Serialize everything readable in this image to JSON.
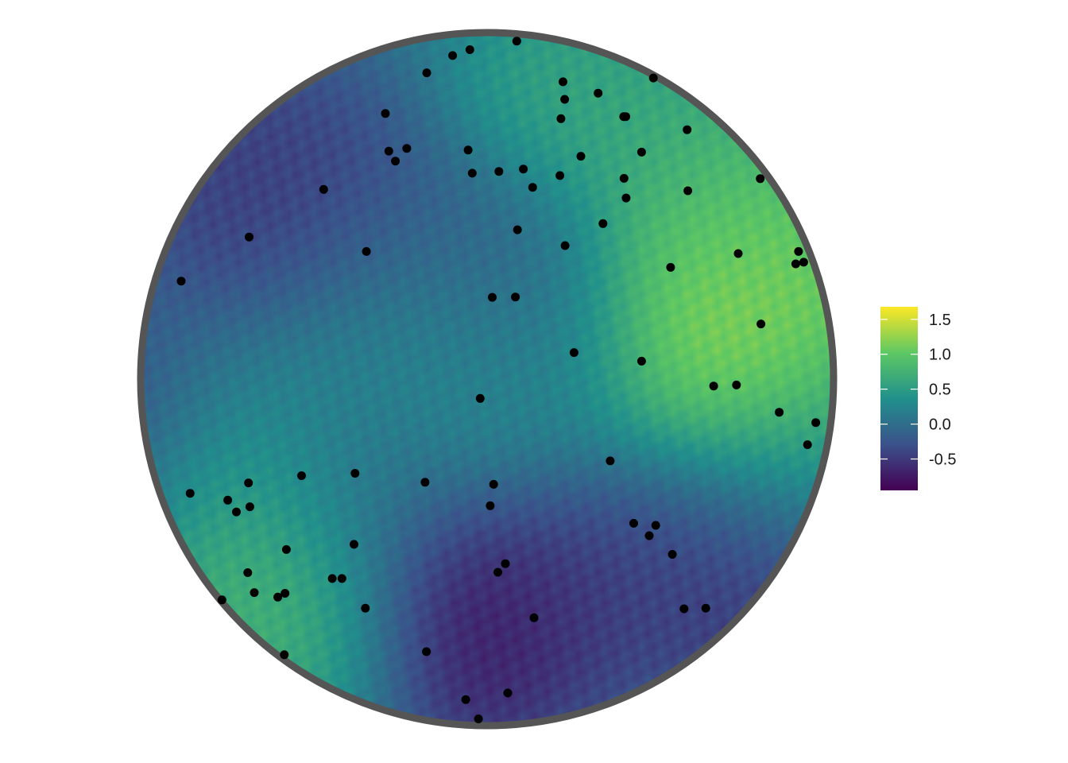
{
  "chart_data": {
    "type": "heatmap",
    "title": "",
    "xlabel": "",
    "ylabel": "",
    "grid": false,
    "region": "circle",
    "colormap": "viridis",
    "colors": [
      "#440154",
      "#3b528b",
      "#21908c",
      "#5dc863",
      "#fde725"
    ],
    "legend": {
      "placement": "right",
      "range": [
        -0.95,
        1.68
      ],
      "ticks": [
        1.5,
        1.0,
        0.5,
        0.0,
        -0.5
      ],
      "tick_labels": [
        "1.5",
        "1.0",
        "0.5",
        "0.0",
        "-0.5"
      ]
    },
    "field_anomalies": [
      {
        "x": 0.93,
        "y": 0.3,
        "value": 1.25
      },
      {
        "x": 0.62,
        "y": 0.05,
        "value": 1.6
      },
      {
        "x": 0.72,
        "y": 0.25,
        "value": 1.1
      },
      {
        "x": 0.68,
        "y": 0.55,
        "value": 0.85
      },
      {
        "x": 0.28,
        "y": 0.8,
        "value": 0.7
      },
      {
        "x": 0.07,
        "y": -0.02,
        "value": 0.6
      },
      {
        "x": -0.75,
        "y": -0.35,
        "value": 1.2
      },
      {
        "x": -0.55,
        "y": -0.7,
        "value": 0.9
      },
      {
        "x": -0.45,
        "y": -0.15,
        "value": 0.35
      },
      {
        "x": -0.3,
        "y": 0.15,
        "value": 0.4
      },
      {
        "x": 0.88,
        "y": -0.22,
        "value": 0.55
      },
      {
        "x": -0.65,
        "y": 0.55,
        "value": -0.65
      },
      {
        "x": -0.45,
        "y": 0.4,
        "value": -0.5
      },
      {
        "x": -0.4,
        "y": -0.25,
        "value": -0.35
      },
      {
        "x": -0.05,
        "y": -0.7,
        "value": -1.05
      },
      {
        "x": 0.2,
        "y": -0.55,
        "value": -0.6
      },
      {
        "x": 0.55,
        "y": -0.45,
        "value": -0.5
      },
      {
        "x": 0.75,
        "y": -0.6,
        "value": -0.7
      },
      {
        "x": -0.05,
        "y": 0.3,
        "value": -0.3
      },
      {
        "x": 0.15,
        "y": 0.05,
        "value": -0.2
      },
      {
        "x": -0.95,
        "y": -0.2,
        "value": -0.6
      }
    ],
    "points": [
      {
        "x": 0.086,
        "y": 0.98
      },
      {
        "x": -0.05,
        "y": 0.955
      },
      {
        "x": -0.1,
        "y": 0.938
      },
      {
        "x": -0.175,
        "y": 0.888
      },
      {
        "x": 0.22,
        "y": 0.862
      },
      {
        "x": 0.322,
        "y": 0.829
      },
      {
        "x": 0.225,
        "y": 0.811
      },
      {
        "x": 0.482,
        "y": 0.873
      },
      {
        "x": 0.396,
        "y": 0.761
      },
      {
        "x": 0.402,
        "y": 0.761
      },
      {
        "x": 0.214,
        "y": 0.755
      },
      {
        "x": -0.295,
        "y": 0.77
      },
      {
        "x": 0.58,
        "y": 0.723
      },
      {
        "x": -0.233,
        "y": 0.669
      },
      {
        "x": -0.285,
        "y": 0.661
      },
      {
        "x": -0.266,
        "y": 0.632
      },
      {
        "x": -0.055,
        "y": 0.664
      },
      {
        "x": 0.448,
        "y": 0.658
      },
      {
        "x": 0.272,
        "y": 0.646
      },
      {
        "x": -0.043,
        "y": 0.597
      },
      {
        "x": 0.034,
        "y": 0.602
      },
      {
        "x": 0.105,
        "y": 0.609
      },
      {
        "x": 0.211,
        "y": 0.59
      },
      {
        "x": 0.397,
        "y": 0.582
      },
      {
        "x": 0.792,
        "y": 0.581
      },
      {
        "x": 0.132,
        "y": 0.556
      },
      {
        "x": -0.474,
        "y": 0.55
      },
      {
        "x": 0.582,
        "y": 0.546
      },
      {
        "x": 0.403,
        "y": 0.525
      },
      {
        "x": 0.336,
        "y": 0.451
      },
      {
        "x": 0.088,
        "y": 0.433
      },
      {
        "x": -0.69,
        "y": 0.412
      },
      {
        "x": 0.226,
        "y": 0.387
      },
      {
        "x": -0.35,
        "y": 0.37
      },
      {
        "x": 0.728,
        "y": 0.364
      },
      {
        "x": 0.903,
        "y": 0.37
      },
      {
        "x": 0.532,
        "y": 0.324
      },
      {
        "x": 0.895,
        "y": 0.334
      },
      {
        "x": 0.918,
        "y": 0.339
      },
      {
        "x": -0.887,
        "y": 0.284
      },
      {
        "x": 0.015,
        "y": 0.237
      },
      {
        "x": 0.082,
        "y": 0.238
      },
      {
        "x": 0.794,
        "y": 0.16
      },
      {
        "x": 0.252,
        "y": 0.077
      },
      {
        "x": 0.448,
        "y": 0.052
      },
      {
        "x": 0.657,
        "y": -0.02
      },
      {
        "x": 0.723,
        "y": -0.017
      },
      {
        "x": -0.02,
        "y": -0.056
      },
      {
        "x": 0.847,
        "y": -0.096
      },
      {
        "x": 0.953,
        "y": -0.126
      },
      {
        "x": 0.929,
        "y": -0.19
      },
      {
        "x": 0.357,
        "y": -0.237
      },
      {
        "x": -0.538,
        "y": -0.28
      },
      {
        "x": -0.383,
        "y": -0.273
      },
      {
        "x": -0.18,
        "y": -0.299
      },
      {
        "x": 0.019,
        "y": -0.305
      },
      {
        "x": -0.692,
        "y": -0.301
      },
      {
        "x": -0.861,
        "y": -0.331
      },
      {
        "x": -0.752,
        "y": -0.351
      },
      {
        "x": -0.688,
        "y": -0.37
      },
      {
        "x": -0.727,
        "y": -0.385
      },
      {
        "x": 0.009,
        "y": -0.367
      },
      {
        "x": 0.425,
        "y": -0.418
      },
      {
        "x": 0.489,
        "y": -0.424
      },
      {
        "x": 0.47,
        "y": -0.454
      },
      {
        "x": -0.386,
        "y": -0.479
      },
      {
        "x": -0.582,
        "y": -0.494
      },
      {
        "x": 0.537,
        "y": -0.508
      },
      {
        "x": 0.053,
        "y": -0.535
      },
      {
        "x": 0.031,
        "y": -0.56
      },
      {
        "x": -0.694,
        "y": -0.561
      },
      {
        "x": -0.449,
        "y": -0.578
      },
      {
        "x": -0.421,
        "y": -0.578
      },
      {
        "x": -0.586,
        "y": -0.621
      },
      {
        "x": -0.675,
        "y": -0.619
      },
      {
        "x": -0.607,
        "y": -0.632
      },
      {
        "x": -0.769,
        "y": -0.64
      },
      {
        "x": -0.353,
        "y": -0.664
      },
      {
        "x": 0.571,
        "y": -0.666
      },
      {
        "x": 0.634,
        "y": -0.664
      },
      {
        "x": 0.136,
        "y": -0.692
      },
      {
        "x": -0.588,
        "y": -0.799
      },
      {
        "x": -0.176,
        "y": -0.79
      },
      {
        "x": 0.06,
        "y": -0.91
      },
      {
        "x": -0.062,
        "y": -0.929
      },
      {
        "x": -0.025,
        "y": -0.985
      }
    ]
  }
}
